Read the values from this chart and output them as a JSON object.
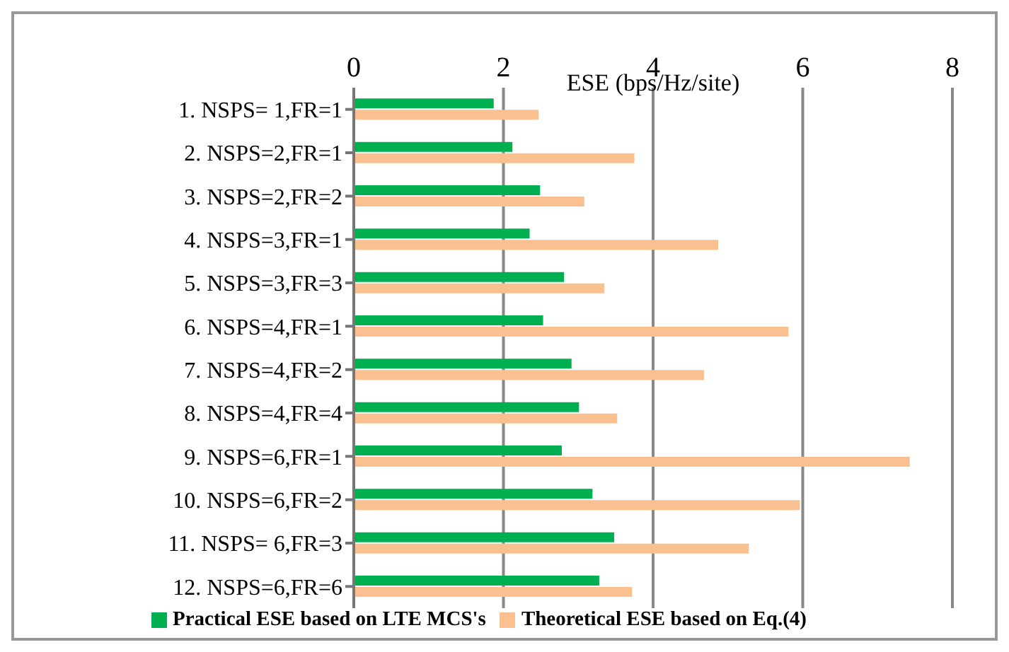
{
  "chart_data": {
    "type": "bar",
    "orientation": "horizontal",
    "xlabel": "ESE (bps/Hz/site)",
    "categories": [
      "1. NSPS= 1,FR=1",
      "2. NSPS=2,FR=1",
      "3. NSPS=2,FR=2",
      "4. NSPS=3,FR=1",
      "5. NSPS=3,FR=3",
      "6. NSPS=4,FR=1",
      "7. NSPS=4,FR=2",
      "8. NSPS=4,FR=4",
      "9. NSPS=6,FR=1",
      "10. NSPS=6,FR=2",
      "11. NSPS= 6,FR=3",
      "12. NSPS=6,FR=6"
    ],
    "series": [
      {
        "name": "Practical ESE based on LTE MCS's",
        "color": "#00b050",
        "values": [
          1.87,
          2.12,
          2.49,
          2.35,
          2.81,
          2.53,
          2.91,
          3.01,
          2.78,
          3.19,
          3.48,
          3.28
        ]
      },
      {
        "name": "Theoretical ESE based on Eq.(4)",
        "color": "#fac090",
        "values": [
          2.47,
          3.75,
          3.08,
          4.87,
          3.35,
          5.81,
          4.68,
          3.52,
          7.43,
          5.96,
          5.28,
          3.72
        ]
      }
    ],
    "xlim": [
      0,
      8
    ],
    "xticks": [
      0,
      2,
      4,
      6,
      8
    ],
    "grid": "x",
    "legend": "bottom"
  }
}
